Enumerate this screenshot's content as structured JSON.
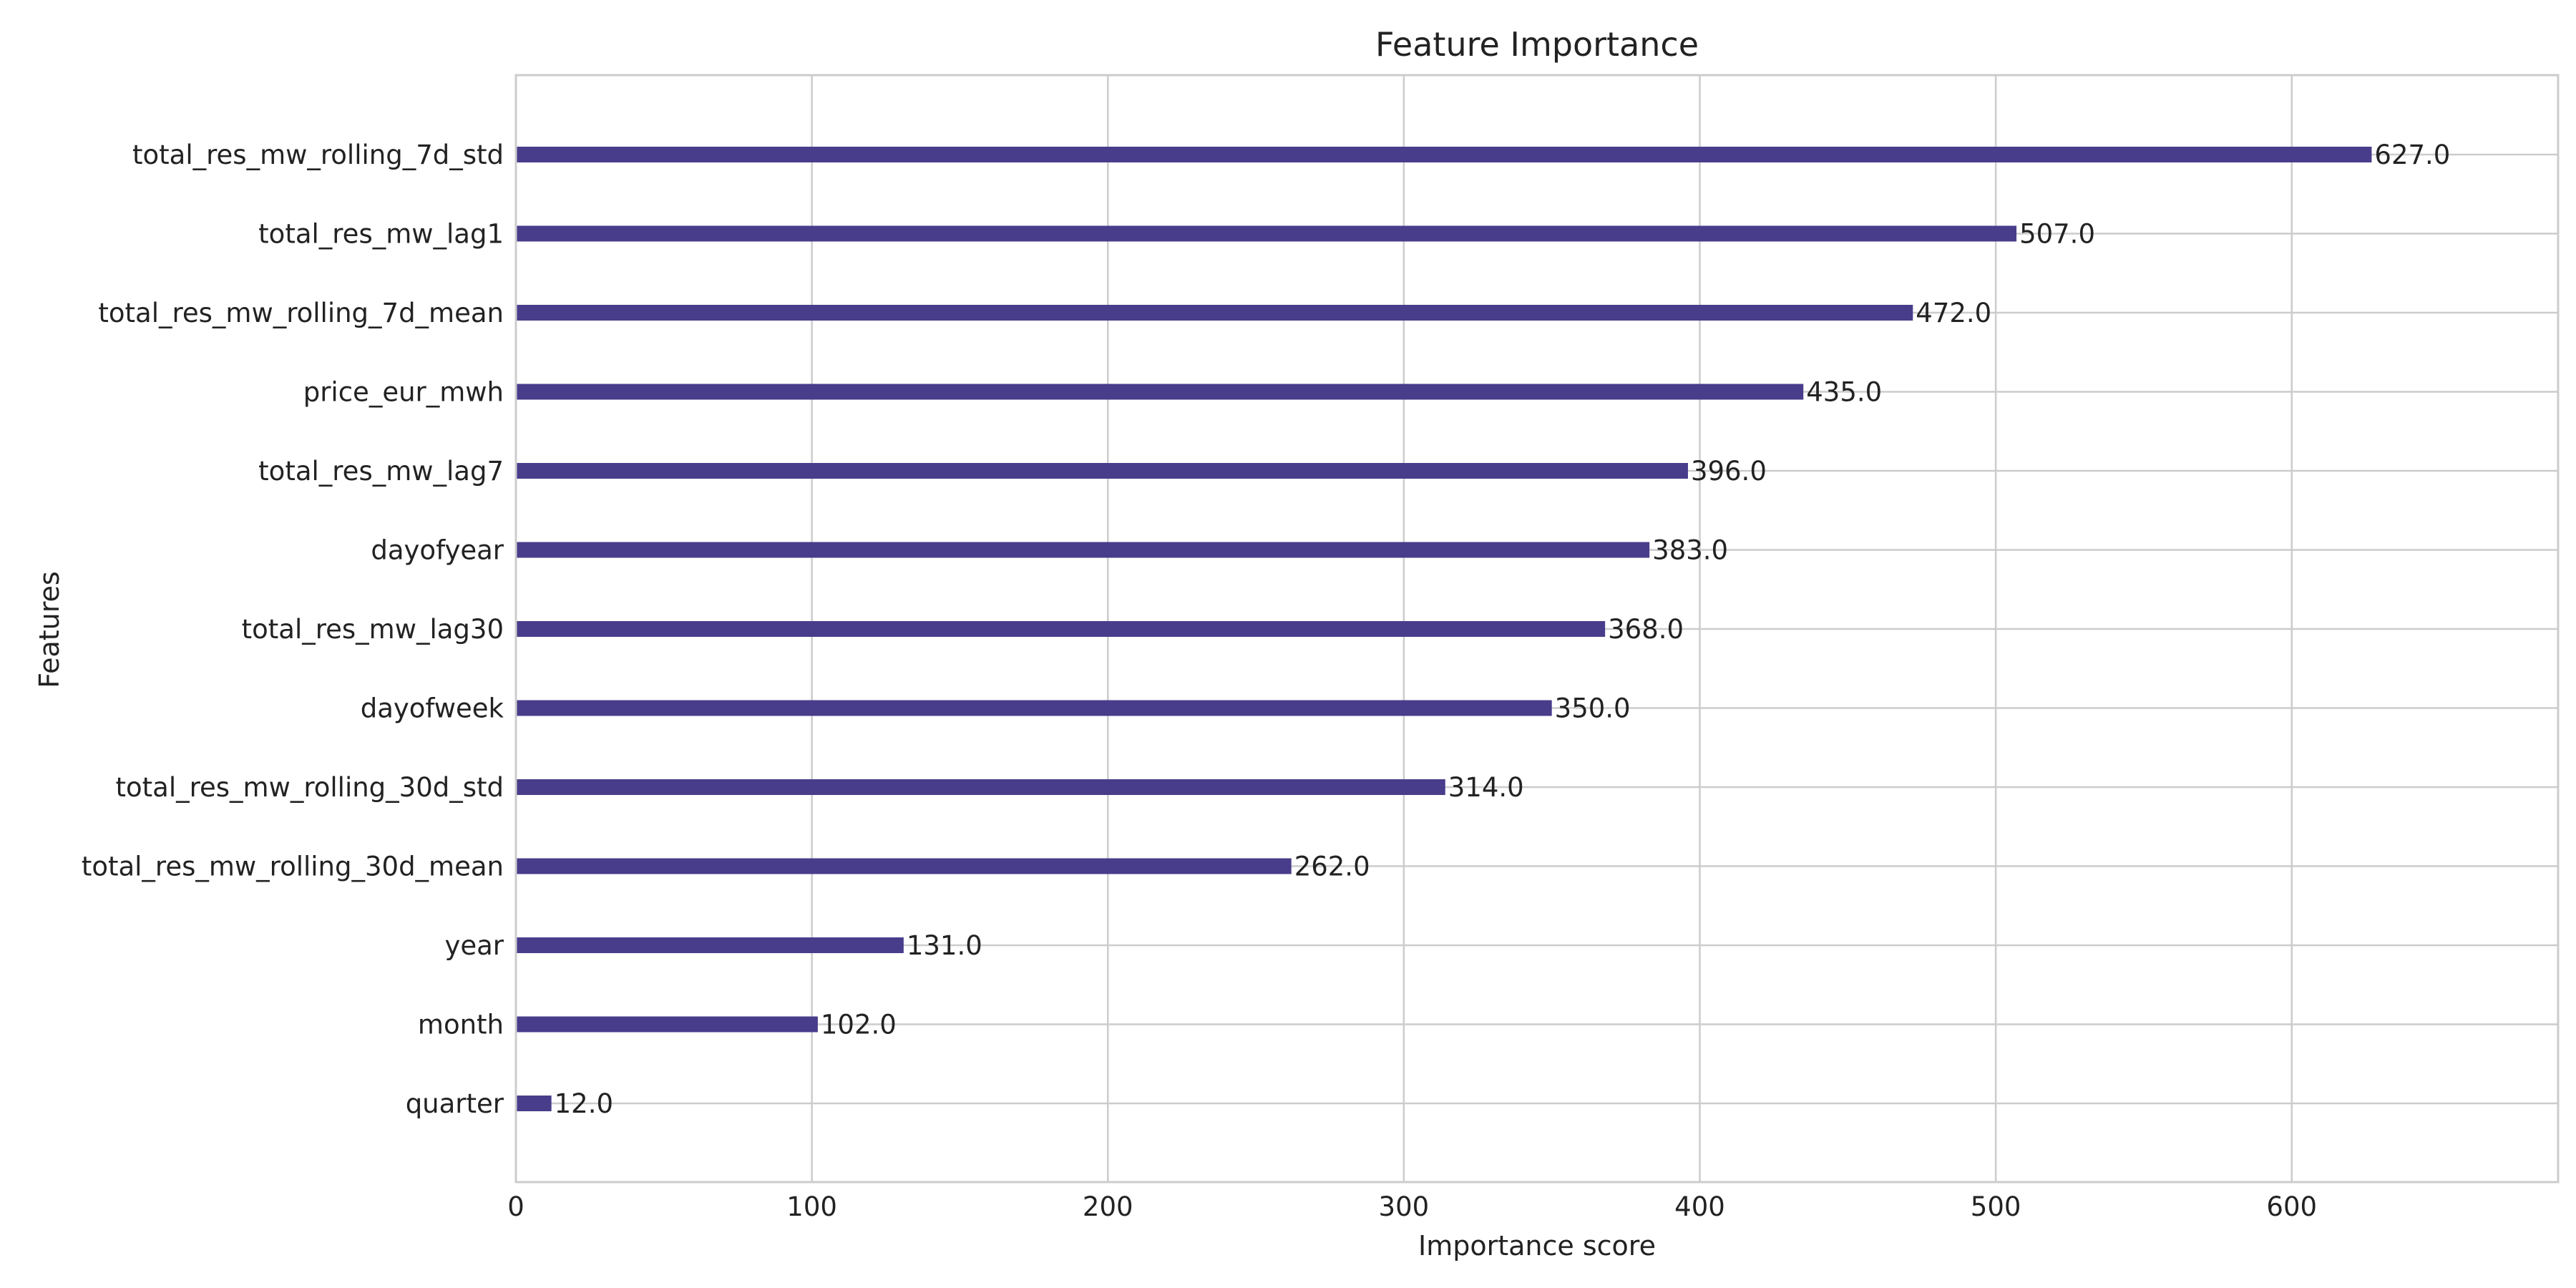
{
  "chart_data": {
    "type": "bar",
    "orientation": "horizontal",
    "title": "Feature Importance",
    "xlabel": "Importance score",
    "ylabel": "Features",
    "xlim": [
      0,
      690
    ],
    "xticks": [
      0,
      100,
      200,
      300,
      400,
      500,
      600
    ],
    "grid": true,
    "bar_color": "#483D8B",
    "categories": [
      "total_res_mw_rolling_7d_std",
      "total_res_mw_lag1",
      "total_res_mw_rolling_7d_mean",
      "price_eur_mwh",
      "total_res_mw_lag7",
      "dayofyear",
      "total_res_mw_lag30",
      "dayofweek",
      "total_res_mw_rolling_30d_std",
      "total_res_mw_rolling_30d_mean",
      "year",
      "month",
      "quarter"
    ],
    "values": [
      627.0,
      507.0,
      472.0,
      435.0,
      396.0,
      383.0,
      368.0,
      350.0,
      314.0,
      262.0,
      131.0,
      102.0,
      12.0
    ],
    "value_labels": [
      "627.0",
      "507.0",
      "472.0",
      "435.0",
      "396.0",
      "383.0",
      "368.0",
      "350.0",
      "314.0",
      "262.0",
      "131.0",
      "102.0",
      "12.0"
    ]
  }
}
